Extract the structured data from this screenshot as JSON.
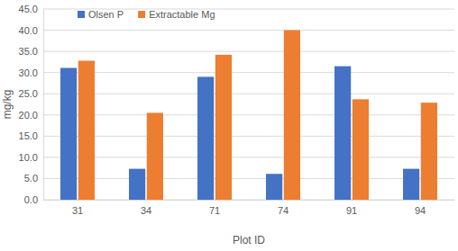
{
  "chart_data": {
    "type": "bar",
    "x_label": "Plot ID",
    "y_label": "mg/kg",
    "categories": [
      "31",
      "34",
      "71",
      "74",
      "91",
      "94"
    ],
    "series": [
      {
        "name": "Olsen P",
        "color": "#4472c4",
        "values": [
          31.1,
          7.3,
          29.0,
          6.1,
          31.5,
          7.3
        ]
      },
      {
        "name": "Extractable Mg",
        "color": "#ed7d31",
        "values": [
          32.8,
          20.5,
          34.2,
          40.0,
          23.7,
          22.9
        ]
      }
    ],
    "ylim": [
      0,
      45
    ],
    "yticks": [
      {
        "value": 0,
        "label": "0.0"
      },
      {
        "value": 5,
        "label": "5.0"
      },
      {
        "value": 10,
        "label": "10.0"
      },
      {
        "value": 15,
        "label": "15.0"
      },
      {
        "value": 20,
        "label": "20.0"
      },
      {
        "value": 25,
        "label": "25.0"
      },
      {
        "value": 30,
        "label": "30.0"
      },
      {
        "value": 35,
        "label": "35.0"
      },
      {
        "value": 40,
        "label": "40.0"
      },
      {
        "value": 45,
        "label": "45.0"
      }
    ],
    "grid": true,
    "legend": "upper left"
  }
}
